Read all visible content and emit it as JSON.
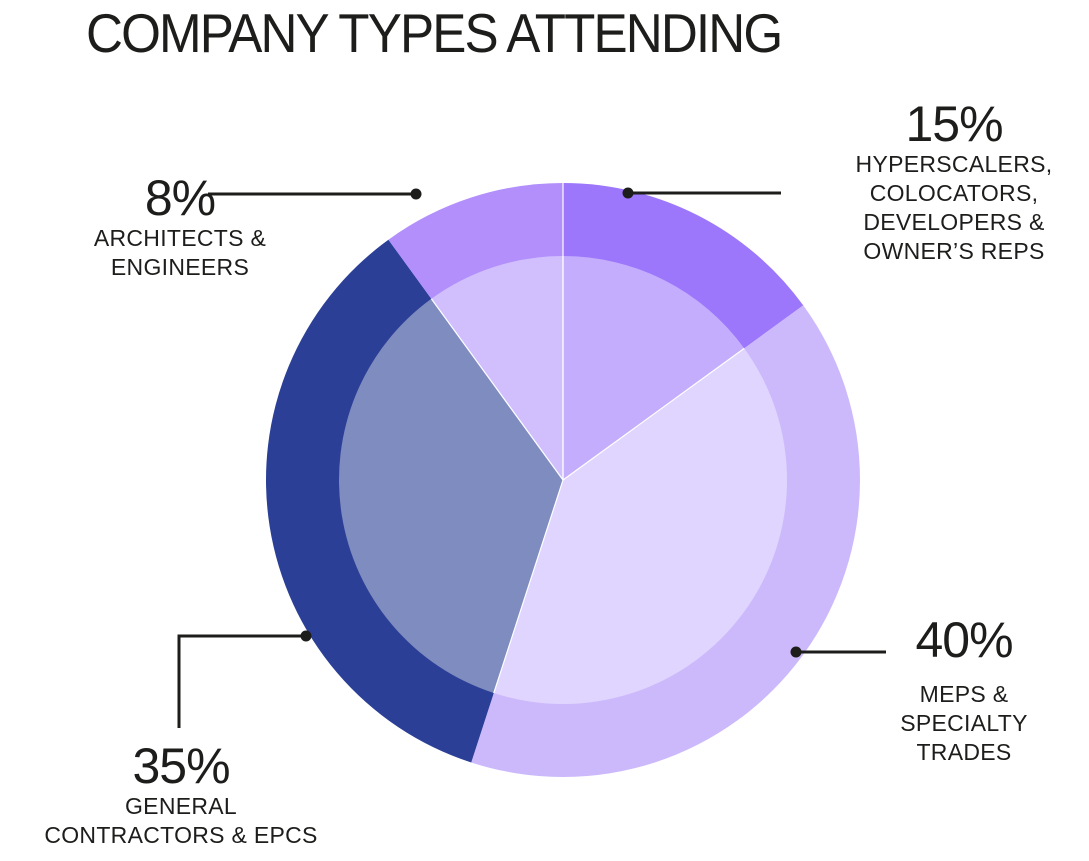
{
  "title": "COMPANY TYPES ATTENDING",
  "chart_data": {
    "type": "pie",
    "title": "COMPANY TYPES ATTENDING",
    "style": "two-tone donut over pie (outer ring darker, inner disk lighter)",
    "start_angle_deg": 0,
    "direction": "clockwise",
    "categories": [
      "Hyperscalers, Colocators, Developers & Owner's Reps",
      "MEPs & Specialty Trades",
      "General Contractors & EPCs",
      "Architects & Engineers"
    ],
    "values": [
      15,
      40,
      35,
      8
    ],
    "units": "%",
    "colors_outer": [
      "#9d77fb",
      "#ccb9fc",
      "#2b3f96",
      "#b28ffb"
    ],
    "colors_inner": [
      "#c4adfd",
      "#e0d5fe",
      "#7f8cbf",
      "#d1bffd"
    ],
    "legend": "callout labels with leader lines"
  },
  "slices": [
    {
      "pct": "15%",
      "lines": [
        "HYPERSCALERS,",
        "COLOCATORS,",
        "DEVELOPERS &",
        "OWNER’S REPS"
      ]
    },
    {
      "pct": "40%",
      "lines": [
        "MEPS &",
        "SPECIALTY",
        "TRADES"
      ]
    },
    {
      "pct": "35%",
      "lines": [
        "GENERAL",
        "CONTRACTORS & EPCS"
      ]
    },
    {
      "pct": "8%",
      "lines": [
        "ARCHITECTS &",
        "ENGINEERS"
      ]
    }
  ]
}
